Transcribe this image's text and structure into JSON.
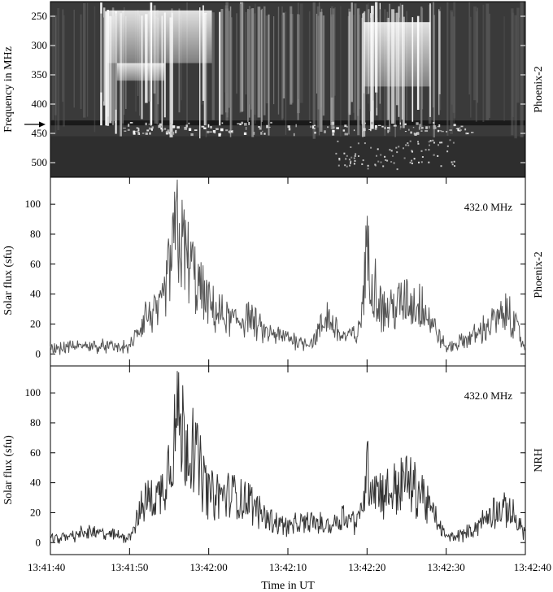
{
  "figure": {
    "x_label": "Time in UT",
    "x_ticks": [
      "13:41:40",
      "13:41:50",
      "13:42:00",
      "13:42:10",
      "13:42:20",
      "13:42:30",
      "13:42:40"
    ]
  },
  "chart_data": [
    {
      "type": "heatmap",
      "ylabel": "Frequency in MHz",
      "y_ticks": [
        250,
        300,
        350,
        400,
        450,
        500
      ],
      "ylim": [
        525,
        225
      ],
      "instrument": "Phoenix-2",
      "x_range": [
        "13:41:40",
        "13:42:40"
      ],
      "colormap": "grayscale",
      "marked_frequency_MHz": 432
    },
    {
      "type": "line",
      "title": "432.0 MHz",
      "ylabel": "Solar flux (sfu)",
      "instrument": "Phoenix-2",
      "y_ticks": [
        0,
        20,
        40,
        60,
        80,
        100
      ],
      "ylim": [
        -8,
        118
      ],
      "x": [
        "13:41:40",
        "13:41:45",
        "13:41:50",
        "13:41:52",
        "13:41:54",
        "13:41:56",
        "13:41:58",
        "13:42:00",
        "13:42:03",
        "13:42:05",
        "13:42:07",
        "13:42:10",
        "13:42:13",
        "13:42:15",
        "13:42:17",
        "13:42:19",
        "13:42:20",
        "13:42:22",
        "13:42:25",
        "13:42:27",
        "13:42:30",
        "13:42:33",
        "13:42:36",
        "13:42:38",
        "13:42:40"
      ],
      "y": [
        5,
        8,
        6,
        35,
        40,
        117,
        75,
        45,
        30,
        35,
        20,
        15,
        10,
        35,
        15,
        20,
        93,
        40,
        50,
        45,
        5,
        15,
        30,
        39,
        5
      ],
      "series_color": "#555555"
    },
    {
      "type": "line",
      "title": "432.0 MHz",
      "ylabel": "Solar flux (sfu)",
      "instrument": "NRH",
      "y_ticks": [
        0,
        20,
        40,
        60,
        80,
        100
      ],
      "ylim": [
        -8,
        118
      ],
      "x": [
        "13:41:40",
        "13:41:45",
        "13:41:50",
        "13:41:52",
        "13:41:54",
        "13:41:56",
        "13:41:58",
        "13:42:00",
        "13:42:03",
        "13:42:05",
        "13:42:07",
        "13:42:10",
        "13:42:13",
        "13:42:15",
        "13:42:17",
        "13:42:19",
        "13:42:20",
        "13:42:22",
        "13:42:25",
        "13:42:27",
        "13:42:30",
        "13:42:33",
        "13:42:36",
        "13:42:38",
        "13:42:40"
      ],
      "y": [
        3,
        10,
        5,
        40,
        45,
        115,
        90,
        45,
        45,
        40,
        25,
        15,
        20,
        15,
        25,
        20,
        67,
        45,
        58,
        45,
        5,
        10,
        30,
        30,
        10
      ],
      "series_color": "#333333"
    }
  ]
}
